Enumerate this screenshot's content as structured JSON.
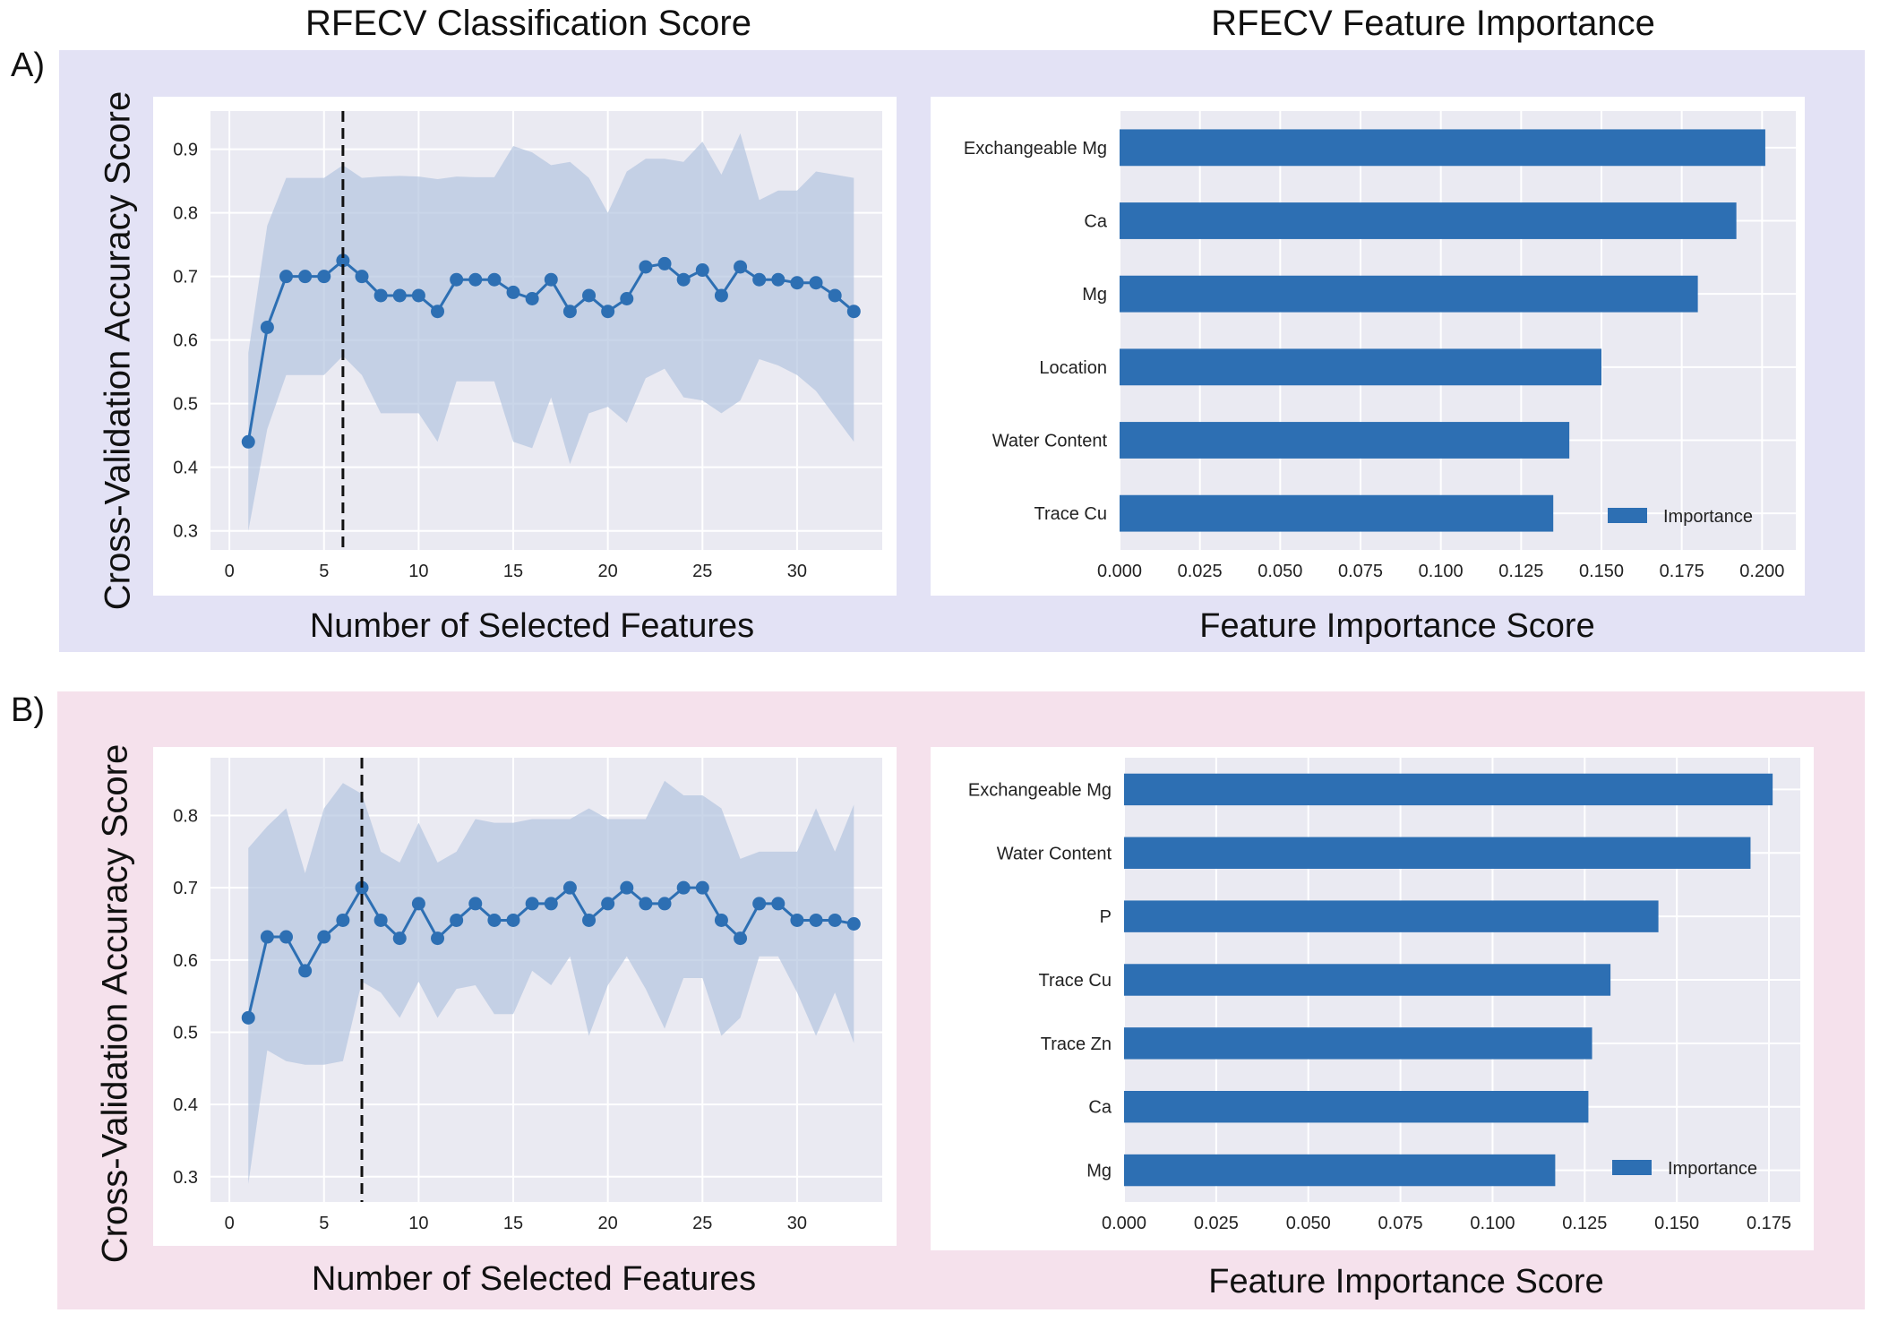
{
  "colors": {
    "panel_a_bg": "#e3e2f5",
    "panel_b_bg": "#f5e1ec",
    "plot_bg": "#eaeaf2",
    "line": "#2d6fb3",
    "band": "#b4c5e0",
    "bar": "#2d6fb3"
  },
  "titles": {
    "left": "RFECV Classification Score",
    "right": "RFECV Feature Importance"
  },
  "panels": [
    {
      "letter": "A)"
    },
    {
      "letter": "B)"
    }
  ],
  "chart_data": [
    {
      "id": "A-left",
      "type": "line",
      "title": "RFECV Classification Score",
      "xlabel": "Number of Selected Features",
      "ylabel": "Cross-Validation Accuracy Score",
      "xlim": [
        -1,
        34.5
      ],
      "ylim": [
        0.27,
        0.96
      ],
      "xticks": [
        0,
        5,
        10,
        15,
        20,
        25,
        30
      ],
      "yticks": [
        0.3,
        0.4,
        0.5,
        0.6,
        0.7,
        0.8,
        0.9
      ],
      "selected_features": 6,
      "x": [
        1,
        2,
        3,
        4,
        5,
        6,
        7,
        8,
        9,
        10,
        11,
        12,
        13,
        14,
        15,
        16,
        17,
        18,
        19,
        20,
        21,
        22,
        23,
        24,
        25,
        26,
        27,
        28,
        29,
        30,
        31,
        32,
        33
      ],
      "y": [
        0.44,
        0.62,
        0.7,
        0.7,
        0.7,
        0.725,
        0.7,
        0.67,
        0.67,
        0.67,
        0.645,
        0.695,
        0.695,
        0.695,
        0.675,
        0.665,
        0.695,
        0.645,
        0.67,
        0.645,
        0.665,
        0.715,
        0.72,
        0.695,
        0.71,
        0.67,
        0.715,
        0.695,
        0.695,
        0.69,
        0.69,
        0.67,
        0.645
      ],
      "upper": [
        0.58,
        0.78,
        0.855,
        0.855,
        0.855,
        0.875,
        0.855,
        0.857,
        0.858,
        0.857,
        0.853,
        0.857,
        0.856,
        0.856,
        0.905,
        0.895,
        0.875,
        0.88,
        0.855,
        0.8,
        0.865,
        0.885,
        0.885,
        0.88,
        0.912,
        0.86,
        0.925,
        0.82,
        0.835,
        0.835,
        0.865,
        0.86,
        0.855
      ],
      "lower": [
        0.3,
        0.46,
        0.545,
        0.545,
        0.545,
        0.575,
        0.545,
        0.485,
        0.485,
        0.485,
        0.44,
        0.535,
        0.535,
        0.535,
        0.44,
        0.43,
        0.51,
        0.405,
        0.485,
        0.495,
        0.47,
        0.54,
        0.555,
        0.51,
        0.505,
        0.485,
        0.505,
        0.57,
        0.56,
        0.545,
        0.52,
        0.48,
        0.44
      ]
    },
    {
      "id": "A-right",
      "type": "bar",
      "title": "RFECV Feature Importance",
      "xlabel": "Feature Importance Score",
      "legend": "Importance",
      "xlim": [
        0,
        0.2105
      ],
      "xticks": [
        0.0,
        0.025,
        0.05,
        0.075,
        0.1,
        0.125,
        0.15,
        0.175,
        0.2
      ],
      "xtick_labels": [
        "0.000",
        "0.025",
        "0.050",
        "0.075",
        "0.100",
        "0.125",
        "0.150",
        "0.175",
        "0.200"
      ],
      "categories": [
        "Exchangeable Mg",
        "Ca",
        "Mg",
        "Location",
        "Water Content",
        "Trace Cu"
      ],
      "values": [
        0.201,
        0.192,
        0.18,
        0.15,
        0.14,
        0.135
      ]
    },
    {
      "id": "B-left",
      "type": "line",
      "title": "RFECV Classification Score",
      "xlabel": "Number of Selected Features",
      "ylabel": "Cross-Validation Accuracy Score",
      "xlim": [
        -1,
        34.5
      ],
      "ylim": [
        0.265,
        0.88
      ],
      "xticks": [
        0,
        5,
        10,
        15,
        20,
        25,
        30
      ],
      "yticks": [
        0.3,
        0.4,
        0.5,
        0.6,
        0.7,
        0.8
      ],
      "selected_features": 7,
      "x": [
        1,
        2,
        3,
        4,
        5,
        6,
        7,
        8,
        9,
        10,
        11,
        12,
        13,
        14,
        15,
        16,
        17,
        18,
        19,
        20,
        21,
        22,
        23,
        24,
        25,
        26,
        27,
        28,
        29,
        30,
        31,
        32,
        33
      ],
      "y": [
        0.52,
        0.632,
        0.632,
        0.585,
        0.632,
        0.655,
        0.7,
        0.655,
        0.63,
        0.678,
        0.63,
        0.655,
        0.678,
        0.655,
        0.655,
        0.678,
        0.678,
        0.7,
        0.655,
        0.678,
        0.7,
        0.678,
        0.678,
        0.7,
        0.7,
        0.655,
        0.63,
        0.678,
        0.678,
        0.655,
        0.655,
        0.655,
        0.65
      ],
      "upper": [
        0.755,
        0.785,
        0.81,
        0.72,
        0.81,
        0.845,
        0.83,
        0.75,
        0.735,
        0.79,
        0.735,
        0.75,
        0.795,
        0.79,
        0.79,
        0.795,
        0.795,
        0.795,
        0.81,
        0.795,
        0.795,
        0.795,
        0.848,
        0.828,
        0.828,
        0.81,
        0.74,
        0.75,
        0.75,
        0.75,
        0.81,
        0.75,
        0.815
      ],
      "lower": [
        0.29,
        0.475,
        0.46,
        0.455,
        0.455,
        0.46,
        0.57,
        0.555,
        0.52,
        0.57,
        0.52,
        0.56,
        0.565,
        0.525,
        0.525,
        0.585,
        0.565,
        0.605,
        0.495,
        0.565,
        0.605,
        0.56,
        0.505,
        0.575,
        0.575,
        0.495,
        0.52,
        0.605,
        0.605,
        0.555,
        0.495,
        0.555,
        0.485
      ]
    },
    {
      "id": "B-right",
      "type": "bar",
      "title": "RFECV Feature Importance",
      "xlabel": "Feature Importance Score",
      "legend": "Importance",
      "xlim": [
        0,
        0.1835
      ],
      "xticks": [
        0.0,
        0.025,
        0.05,
        0.075,
        0.1,
        0.125,
        0.15,
        0.175
      ],
      "xtick_labels": [
        "0.000",
        "0.025",
        "0.050",
        "0.075",
        "0.100",
        "0.125",
        "0.150",
        "0.175"
      ],
      "categories": [
        "Exchangeable Mg",
        "Water Content",
        "P",
        "Trace Cu",
        "Trace Zn",
        "Ca",
        "Mg"
      ],
      "values": [
        0.176,
        0.17,
        0.145,
        0.132,
        0.127,
        0.126,
        0.117
      ]
    }
  ]
}
